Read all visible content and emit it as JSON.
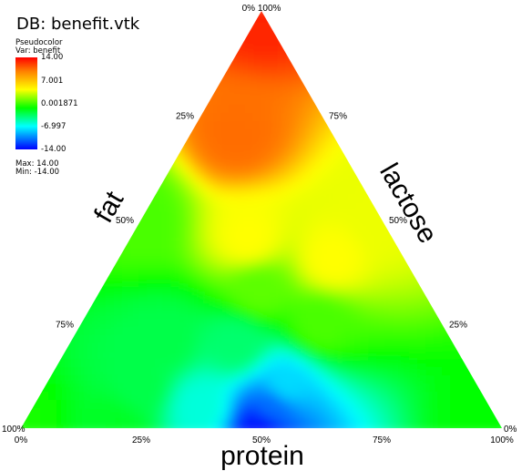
{
  "header": {
    "title": "DB: benefit.vtk"
  },
  "legend": {
    "plot_name": "Pseudocolor",
    "var_label": "Var: benefit",
    "ticks": [
      "14.00",
      "7.001",
      "0.001871",
      "-6.997",
      "-14.00"
    ],
    "max_label": "Max: 14.00",
    "min_label": "Min: -14.00",
    "colors": [
      "#ff0000",
      "#ffff00",
      "#00ff00",
      "#00ffff",
      "#0000ff"
    ]
  },
  "chart_data": {
    "type": "ternary-pseudocolor",
    "title": "DB: benefit.vtk",
    "variable": "benefit",
    "range": [
      -14.0,
      14.0
    ],
    "axes": {
      "fat": {
        "label": "fat",
        "ticks": [
          "100%",
          "75%",
          "50%",
          "25%",
          "0%"
        ]
      },
      "lactose": {
        "label": "lactose",
        "ticks": [
          "100%",
          "75%",
          "50%",
          "25%",
          "0%"
        ]
      },
      "protein": {
        "label": "protein",
        "ticks": [
          "0%",
          "25%",
          "50%",
          "75%",
          "100%"
        ]
      }
    },
    "samples": [
      {
        "fat": 0.0,
        "lactose": 1.0,
        "protein": 0.0,
        "value": 13.0
      },
      {
        "fat": 0.0,
        "lactose": 0.5,
        "protein": 0.5,
        "value": 6.5
      },
      {
        "fat": 0.0,
        "lactose": 0.0,
        "protein": 1.0,
        "value": 0.0
      },
      {
        "fat": 0.5,
        "lactose": 0.5,
        "protein": 0.0,
        "value": 2.0
      },
      {
        "fat": 1.0,
        "lactose": 0.0,
        "protein": 0.0,
        "value": 0.5
      },
      {
        "fat": 0.5,
        "lactose": 0.0,
        "protein": 0.5,
        "value": -13.5
      },
      {
        "fat": 0.34,
        "lactose": 0.33,
        "protein": 0.33,
        "value": 2.5
      },
      {
        "fat": 0.2,
        "lactose": 0.7,
        "protein": 0.1,
        "value": 11.0
      },
      {
        "fat": 0.6,
        "lactose": 0.2,
        "protein": 0.2,
        "value": -2.0
      },
      {
        "fat": 0.4,
        "lactose": 0.1,
        "protein": 0.5,
        "value": -8.0
      },
      {
        "fat": 0.25,
        "lactose": 0.25,
        "protein": 0.5,
        "value": 2.0
      },
      {
        "fat": 0.7,
        "lactose": 0.1,
        "protein": 0.2,
        "value": -2.0
      },
      {
        "fat": 0.8,
        "lactose": 0.0,
        "protein": 0.2,
        "value": -1.0
      },
      {
        "fat": 0.15,
        "lactose": 0.4,
        "protein": 0.45,
        "value": 7.0
      },
      {
        "fat": 0.6,
        "lactose": 0.05,
        "protein": 0.35,
        "value": -6.0
      },
      {
        "fat": 0.45,
        "lactose": 0.05,
        "protein": 0.5,
        "value": -11.0
      },
      {
        "fat": 0.45,
        "lactose": 0.2,
        "protein": 0.35,
        "value": -3.0
      },
      {
        "fat": 0.3,
        "lactose": 0.45,
        "protein": 0.25,
        "value": 7.0
      }
    ],
    "grid": false,
    "legend_position": "top-left"
  }
}
